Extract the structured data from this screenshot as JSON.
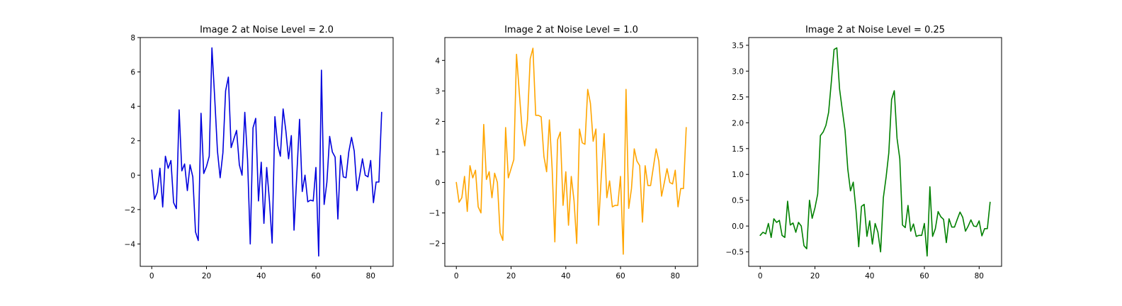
{
  "chart_data": [
    {
      "type": "line",
      "title": "Image 2 at Noise Level = 2.0",
      "xlabel": "",
      "ylabel": "",
      "color": "#0000dd",
      "xlim": [
        -4.2,
        88.2
      ],
      "ylim": [
        -5.3,
        8.0
      ],
      "xticks": [
        0,
        20,
        40,
        60,
        80
      ],
      "yticks": [
        -4,
        -2,
        0,
        2,
        4,
        6,
        8
      ],
      "grid": false,
      "legend": "none",
      "y": [
        0.3,
        -1.4,
        -1.0,
        0.4,
        -1.85,
        1.1,
        0.4,
        0.85,
        -1.6,
        -1.95,
        3.8,
        0.25,
        0.65,
        -0.9,
        0.6,
        -0.1,
        -3.3,
        -3.8,
        3.6,
        0.1,
        0.5,
        1.1,
        7.4,
        4.5,
        1.4,
        -0.15,
        1.3,
        4.9,
        5.7,
        1.6,
        2.1,
        2.6,
        0.6,
        0.0,
        3.65,
        0.9,
        -4.0,
        2.75,
        3.3,
        -1.5,
        0.75,
        -2.8,
        0.45,
        -1.5,
        -3.95,
        3.4,
        1.75,
        1.1,
        3.85,
        2.6,
        0.95,
        2.3,
        -3.2,
        0.0,
        3.25,
        -0.95,
        0.0,
        -1.55,
        -1.45,
        -1.5,
        0.45,
        -4.7,
        6.1,
        -1.7,
        -0.4,
        2.25,
        1.35,
        1.05,
        -2.55,
        1.15,
        -0.1,
        -0.15,
        1.35,
        2.2,
        1.4,
        -0.9,
        0.0,
        0.95,
        0.0,
        -0.1,
        0.85,
        -1.6,
        -0.4,
        -0.4,
        3.65
      ]
    },
    {
      "type": "line",
      "title": "Image 2 at Noise Level = 1.0",
      "xlabel": "",
      "ylabel": "",
      "color": "#ffa500",
      "xlim": [
        -4.2,
        88.2
      ],
      "ylim": [
        -2.75,
        4.75
      ],
      "xticks": [
        0,
        20,
        40,
        60,
        80
      ],
      "yticks": [
        -2,
        -1,
        0,
        1,
        2,
        3,
        4
      ],
      "grid": false,
      "legend": "none",
      "y": [
        0.0,
        -0.65,
        -0.5,
        0.2,
        -0.95,
        0.55,
        0.15,
        0.4,
        -0.8,
        -1.0,
        1.9,
        0.1,
        0.35,
        -0.5,
        0.3,
        0.0,
        -1.65,
        -1.9,
        1.8,
        0.15,
        0.45,
        0.75,
        4.2,
        2.95,
        1.75,
        1.2,
        2.05,
        4.05,
        4.4,
        2.2,
        2.2,
        2.15,
        0.85,
        0.35,
        2.05,
        0.45,
        -1.95,
        1.4,
        1.65,
        -0.75,
        0.35,
        -1.4,
        0.2,
        -0.6,
        -2.0,
        1.75,
        1.3,
        1.25,
        3.05,
        2.6,
        1.35,
        1.75,
        -1.4,
        0.25,
        1.6,
        -0.5,
        0.05,
        -0.8,
        -0.75,
        -0.75,
        0.2,
        -2.35,
        3.05,
        -0.85,
        -0.2,
        1.1,
        0.7,
        0.55,
        -1.3,
        0.55,
        -0.1,
        -0.1,
        0.5,
        1.1,
        0.7,
        -0.45,
        0.0,
        0.45,
        0.0,
        -0.05,
        0.4,
        -0.8,
        -0.2,
        -0.2,
        1.8
      ]
    },
    {
      "type": "line",
      "title": "Image 2 at Noise Level = 0.25",
      "xlabel": "",
      "ylabel": "",
      "color": "#008000",
      "xlim": [
        -4.2,
        88.2
      ],
      "ylim": [
        -0.78,
        3.65
      ],
      "xticks": [
        0,
        20,
        40,
        60,
        80
      ],
      "yticks": [
        -0.5,
        0.0,
        0.5,
        1.0,
        1.5,
        2.0,
        2.5,
        3.0,
        3.5
      ],
      "grid": false,
      "legend": "none",
      "y": [
        -0.18,
        -0.12,
        -0.15,
        0.05,
        -0.22,
        0.14,
        0.07,
        0.11,
        -0.18,
        -0.22,
        0.48,
        0.02,
        0.06,
        -0.12,
        0.07,
        0.0,
        -0.38,
        -0.44,
        0.5,
        0.15,
        0.35,
        0.62,
        1.75,
        1.82,
        1.95,
        2.2,
        2.8,
        3.42,
        3.45,
        2.65,
        2.25,
        1.85,
        1.1,
        0.68,
        0.85,
        0.3,
        -0.4,
        0.38,
        0.42,
        -0.2,
        0.1,
        -0.35,
        0.05,
        -0.12,
        -0.5,
        0.55,
        0.95,
        1.42,
        2.45,
        2.62,
        1.7,
        1.3,
        0.02,
        -0.03,
        0.4,
        -0.1,
        0.04,
        -0.2,
        -0.18,
        -0.18,
        0.05,
        -0.58,
        0.76,
        -0.2,
        -0.05,
        0.28,
        0.18,
        0.13,
        -0.32,
        0.14,
        -0.02,
        -0.02,
        0.13,
        0.27,
        0.17,
        -0.1,
        0.0,
        0.12,
        0.0,
        -0.01,
        0.1,
        -0.19,
        -0.05,
        -0.05,
        0.46
      ]
    }
  ]
}
